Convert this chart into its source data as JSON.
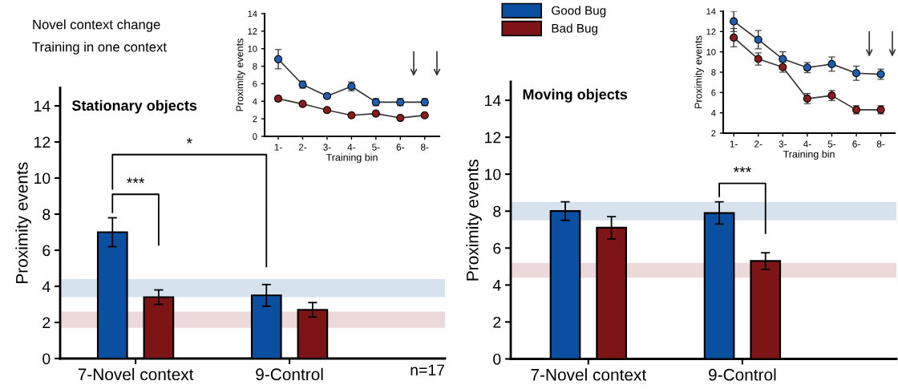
{
  "chart_data": [
    {
      "type": "bar",
      "title": "Stationary objects",
      "ylabel": "Proximity events",
      "categories": [
        "7-Novel context",
        "9-Control"
      ],
      "series": [
        {
          "color": "#0b4fa0",
          "values": [
            7.0,
            3.5
          ],
          "errors": [
            0.8,
            0.6
          ]
        },
        {
          "color": "#7d1416",
          "values": [
            3.4,
            2.7
          ],
          "errors": [
            0.4,
            0.4
          ]
        }
      ],
      "ylim": [
        0,
        15
      ],
      "yticks": [
        0,
        2,
        4,
        6,
        8,
        10,
        12,
        14
      ],
      "bands": [
        {
          "axis": "y",
          "from": 3.4,
          "to": 4.4,
          "color": "#d7e2ef"
        },
        {
          "axis": "y",
          "from": 1.7,
          "to": 2.6,
          "color": "#ecd9d9"
        }
      ],
      "annotations": [
        "Novel context change",
        "Training in one context",
        "***",
        "*",
        "n=17"
      ]
    },
    {
      "type": "line",
      "xlabel": "Training bin",
      "ylabel": "Proximity events",
      "categories": [
        "1-",
        "2-",
        "3-",
        "4-",
        "5-",
        "6-",
        "8-"
      ],
      "series": [
        {
          "color": "#1f5fb0",
          "values": [
            8.8,
            5.9,
            4.6,
            5.7,
            3.9,
            3.9,
            3.9
          ],
          "errors": [
            1.1,
            0.4,
            0.2,
            0.5,
            0.4,
            0.4,
            0.4
          ]
        },
        {
          "color": "#8a1c1c",
          "values": [
            4.3,
            3.7,
            3.0,
            2.4,
            2.6,
            2.1,
            2.4
          ],
          "errors": [
            0.3,
            0.2,
            0.2,
            0.2,
            0.2,
            0.2,
            0.2
          ]
        }
      ],
      "ylim": [
        0,
        14
      ],
      "yticks": [
        0,
        2,
        4,
        6,
        8,
        10,
        12,
        14
      ],
      "marker": "circle",
      "line_style": "solid"
    },
    {
      "type": "bar",
      "title": "Moving objects",
      "ylabel": "Proximity events",
      "categories": [
        "7-Novel context",
        "9-Control"
      ],
      "series": [
        {
          "name": "Good Bug",
          "color": "#0b4fa0",
          "values": [
            8.0,
            7.9
          ],
          "errors": [
            0.5,
            0.6
          ]
        },
        {
          "name": "Bad Bug",
          "color": "#7d1416",
          "values": [
            7.1,
            5.3
          ],
          "errors": [
            0.6,
            0.45
          ]
        }
      ],
      "ylim": [
        0,
        15
      ],
      "yticks": [
        0,
        2,
        4,
        6,
        8,
        10,
        12,
        14
      ],
      "bands": [
        {
          "axis": "y",
          "from": 7.5,
          "to": 8.5,
          "color": "#d7e2ef"
        },
        {
          "axis": "y",
          "from": 4.4,
          "to": 5.2,
          "color": "#ecd9d9"
        }
      ],
      "annotations": [
        "***"
      ],
      "legend": "top left"
    },
    {
      "type": "line",
      "xlabel": "Training bin",
      "ylabel": "Proximity events",
      "categories": [
        "1-",
        "2-",
        "3-",
        "4-",
        "5-",
        "6-",
        "8-"
      ],
      "series": [
        {
          "color": "#1f5fb0",
          "values": [
            13.0,
            11.2,
            9.3,
            8.45,
            8.8,
            7.9,
            7.8
          ],
          "errors": [
            1.0,
            0.9,
            0.7,
            0.5,
            0.7,
            0.7,
            0.5
          ]
        },
        {
          "color": "#8a1c1c",
          "values": [
            11.4,
            9.3,
            8.5,
            5.4,
            5.7,
            4.3,
            4.3
          ],
          "errors": [
            0.9,
            0.6,
            0.5,
            0.5,
            0.5,
            0.4,
            0.4
          ]
        }
      ],
      "ylim": [
        2,
        14
      ],
      "yticks": [
        2,
        4,
        6,
        8,
        10,
        12,
        14
      ],
      "marker": "circle",
      "line_style": "solid"
    }
  ]
}
